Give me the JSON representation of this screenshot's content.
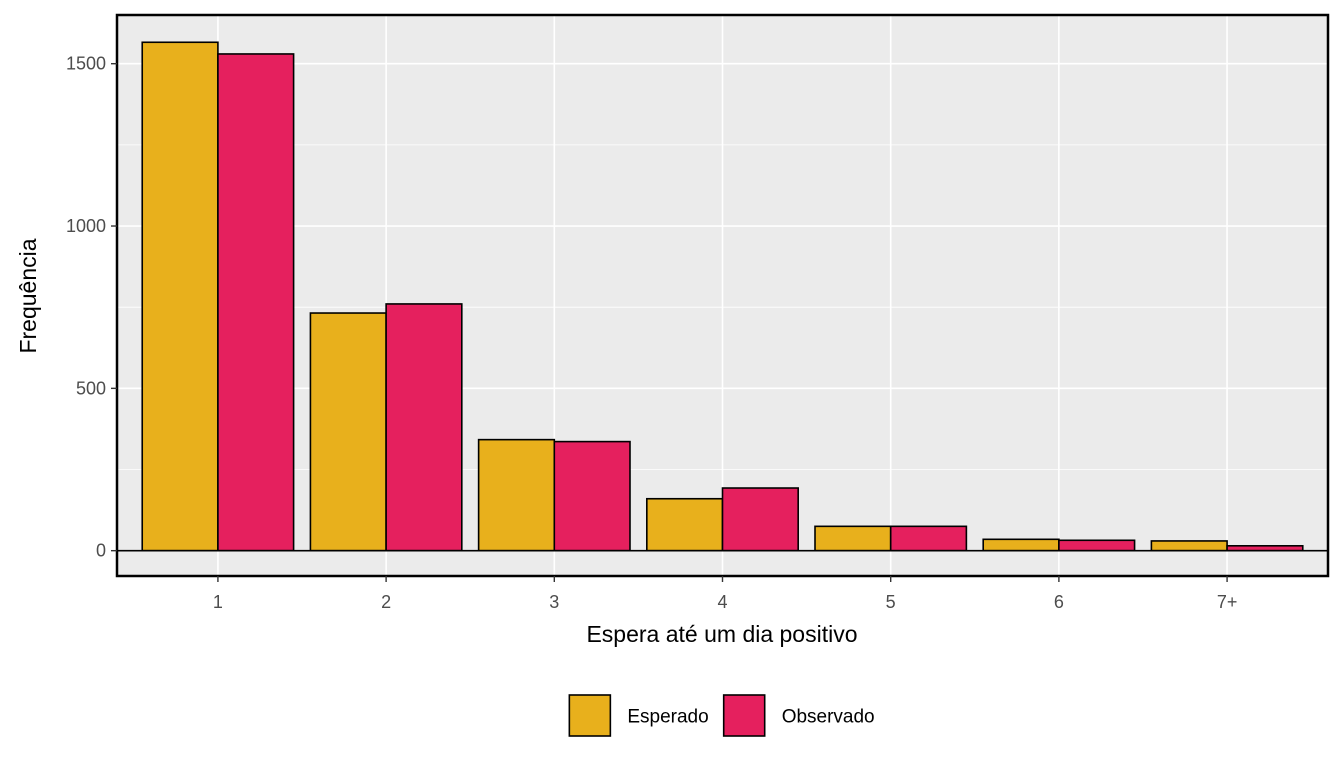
{
  "chart_data": {
    "type": "bar",
    "title": "",
    "xlabel": "Espera até um dia positivo",
    "ylabel": "Frequência",
    "categories": [
      "1",
      "2",
      "3",
      "4",
      "5",
      "6",
      "7+"
    ],
    "series": [
      {
        "name": "Esperado",
        "color": "#E8B01C",
        "values": [
          1566,
          732,
          342,
          160,
          75,
          35,
          30
        ]
      },
      {
        "name": "Observado",
        "color": "#E5205E",
        "values": [
          1530,
          760,
          336,
          193,
          75,
          32,
          15
        ]
      }
    ],
    "ylim": [
      -78,
      1650
    ],
    "yticks": [
      0,
      500,
      1000,
      1500
    ],
    "grid": true,
    "panel_background": "#EBEBEB",
    "legend_position": "bottom"
  }
}
